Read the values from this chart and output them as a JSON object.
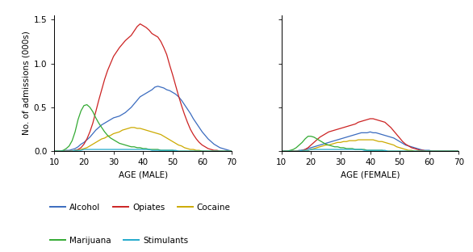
{
  "ylabel": "No. of admissions (000s)",
  "xlabel_male": "AGE (MALE)",
  "xlabel_female": "AGE (FEMALE)",
  "xlim": [
    10,
    70
  ],
  "ylim": [
    0,
    1.55
  ],
  "yticks": [
    0.0,
    0.5,
    1.0,
    1.5
  ],
  "xticks": [
    10,
    20,
    30,
    40,
    50,
    60,
    70
  ],
  "colors": {
    "alcohol": "#3a6bbf",
    "opiates": "#cc2222",
    "cocaine": "#ccaa00",
    "marijuana": "#33aa33",
    "stimulants": "#22aacc"
  },
  "male": {
    "ages": [
      10,
      11,
      12,
      13,
      14,
      15,
      16,
      17,
      18,
      19,
      20,
      21,
      22,
      23,
      24,
      25,
      26,
      27,
      28,
      29,
      30,
      31,
      32,
      33,
      34,
      35,
      36,
      37,
      38,
      39,
      40,
      41,
      42,
      43,
      44,
      45,
      46,
      47,
      48,
      49,
      50,
      51,
      52,
      53,
      54,
      55,
      56,
      57,
      58,
      59,
      60,
      61,
      62,
      63,
      64,
      65,
      66,
      67,
      68,
      69,
      70
    ],
    "alcohol": [
      0.0,
      0.0,
      0.0,
      0.0,
      0.01,
      0.01,
      0.02,
      0.03,
      0.05,
      0.08,
      0.1,
      0.13,
      0.16,
      0.2,
      0.24,
      0.27,
      0.3,
      0.32,
      0.34,
      0.36,
      0.38,
      0.39,
      0.4,
      0.42,
      0.44,
      0.47,
      0.5,
      0.54,
      0.58,
      0.62,
      0.64,
      0.66,
      0.68,
      0.7,
      0.73,
      0.74,
      0.73,
      0.72,
      0.7,
      0.69,
      0.67,
      0.65,
      0.62,
      0.58,
      0.53,
      0.48,
      0.43,
      0.37,
      0.32,
      0.27,
      0.22,
      0.18,
      0.14,
      0.11,
      0.08,
      0.06,
      0.04,
      0.03,
      0.02,
      0.01,
      0.0
    ],
    "opiates": [
      0.0,
      0.0,
      0.0,
      0.0,
      0.0,
      0.0,
      0.0,
      0.01,
      0.02,
      0.04,
      0.08,
      0.14,
      0.22,
      0.32,
      0.45,
      0.58,
      0.7,
      0.82,
      0.92,
      1.0,
      1.08,
      1.13,
      1.18,
      1.22,
      1.26,
      1.29,
      1.32,
      1.37,
      1.42,
      1.45,
      1.43,
      1.41,
      1.38,
      1.34,
      1.32,
      1.3,
      1.25,
      1.18,
      1.1,
      0.98,
      0.87,
      0.75,
      0.63,
      0.52,
      0.42,
      0.33,
      0.25,
      0.19,
      0.14,
      0.1,
      0.07,
      0.05,
      0.03,
      0.02,
      0.01,
      0.01,
      0.0,
      0.0,
      0.0,
      0.0,
      0.0
    ],
    "cocaine": [
      0.0,
      0.0,
      0.0,
      0.0,
      0.0,
      0.0,
      0.0,
      0.01,
      0.01,
      0.02,
      0.03,
      0.04,
      0.06,
      0.08,
      0.1,
      0.12,
      0.14,
      0.15,
      0.17,
      0.18,
      0.2,
      0.21,
      0.22,
      0.24,
      0.25,
      0.26,
      0.27,
      0.27,
      0.26,
      0.26,
      0.25,
      0.24,
      0.23,
      0.22,
      0.21,
      0.2,
      0.19,
      0.17,
      0.15,
      0.13,
      0.11,
      0.09,
      0.07,
      0.06,
      0.04,
      0.03,
      0.02,
      0.02,
      0.01,
      0.01,
      0.0,
      0.0,
      0.0,
      0.0,
      0.0,
      0.0,
      0.0,
      0.0,
      0.0,
      0.0,
      0.0
    ],
    "marijuana": [
      0.0,
      0.0,
      0.0,
      0.01,
      0.03,
      0.06,
      0.12,
      0.22,
      0.36,
      0.46,
      0.52,
      0.53,
      0.5,
      0.45,
      0.38,
      0.32,
      0.27,
      0.22,
      0.18,
      0.15,
      0.13,
      0.11,
      0.09,
      0.08,
      0.07,
      0.06,
      0.05,
      0.05,
      0.04,
      0.04,
      0.03,
      0.03,
      0.02,
      0.02,
      0.02,
      0.02,
      0.01,
      0.01,
      0.01,
      0.01,
      0.01,
      0.0,
      0.0,
      0.0,
      0.0,
      0.0,
      0.0,
      0.0,
      0.0,
      0.0,
      0.0,
      0.0,
      0.0,
      0.0,
      0.0,
      0.0,
      0.0,
      0.0,
      0.0,
      0.0,
      0.0
    ],
    "stimulants": [
      0.0,
      0.0,
      0.0,
      0.0,
      0.0,
      0.0,
      0.0,
      0.01,
      0.01,
      0.01,
      0.02,
      0.02,
      0.02,
      0.02,
      0.02,
      0.02,
      0.02,
      0.02,
      0.02,
      0.02,
      0.02,
      0.02,
      0.02,
      0.02,
      0.02,
      0.02,
      0.02,
      0.02,
      0.02,
      0.02,
      0.02,
      0.02,
      0.02,
      0.01,
      0.01,
      0.01,
      0.01,
      0.01,
      0.01,
      0.01,
      0.01,
      0.01,
      0.0,
      0.0,
      0.0,
      0.0,
      0.0,
      0.0,
      0.0,
      0.0,
      0.0,
      0.0,
      0.0,
      0.0,
      0.0,
      0.0,
      0.0,
      0.0,
      0.0,
      0.0,
      0.0
    ]
  },
  "female": {
    "ages": [
      10,
      11,
      12,
      13,
      14,
      15,
      16,
      17,
      18,
      19,
      20,
      21,
      22,
      23,
      24,
      25,
      26,
      27,
      28,
      29,
      30,
      31,
      32,
      33,
      34,
      35,
      36,
      37,
      38,
      39,
      40,
      41,
      42,
      43,
      44,
      45,
      46,
      47,
      48,
      49,
      50,
      51,
      52,
      53,
      54,
      55,
      56,
      57,
      58,
      59,
      60,
      61,
      62,
      63,
      64,
      65,
      66,
      67,
      68,
      69,
      70
    ],
    "alcohol": [
      0.0,
      0.0,
      0.0,
      0.0,
      0.0,
      0.0,
      0.01,
      0.01,
      0.02,
      0.03,
      0.04,
      0.05,
      0.06,
      0.07,
      0.08,
      0.09,
      0.1,
      0.11,
      0.12,
      0.13,
      0.14,
      0.15,
      0.16,
      0.17,
      0.18,
      0.19,
      0.2,
      0.21,
      0.21,
      0.21,
      0.22,
      0.21,
      0.21,
      0.2,
      0.19,
      0.18,
      0.17,
      0.16,
      0.15,
      0.13,
      0.11,
      0.09,
      0.07,
      0.06,
      0.05,
      0.04,
      0.03,
      0.02,
      0.01,
      0.01,
      0.01,
      0.0,
      0.0,
      0.0,
      0.0,
      0.0,
      0.0,
      0.0,
      0.0,
      0.0,
      0.0
    ],
    "opiates": [
      0.0,
      0.0,
      0.0,
      0.0,
      0.0,
      0.0,
      0.0,
      0.01,
      0.02,
      0.04,
      0.07,
      0.1,
      0.13,
      0.16,
      0.18,
      0.2,
      0.22,
      0.23,
      0.24,
      0.25,
      0.26,
      0.27,
      0.28,
      0.29,
      0.3,
      0.31,
      0.33,
      0.34,
      0.35,
      0.36,
      0.37,
      0.37,
      0.36,
      0.35,
      0.34,
      0.33,
      0.3,
      0.27,
      0.23,
      0.19,
      0.15,
      0.11,
      0.08,
      0.06,
      0.04,
      0.03,
      0.02,
      0.01,
      0.01,
      0.0,
      0.0,
      0.0,
      0.0,
      0.0,
      0.0,
      0.0,
      0.0,
      0.0,
      0.0,
      0.0,
      0.0
    ],
    "cocaine": [
      0.0,
      0.0,
      0.0,
      0.0,
      0.0,
      0.0,
      0.0,
      0.0,
      0.01,
      0.01,
      0.02,
      0.03,
      0.04,
      0.05,
      0.06,
      0.07,
      0.07,
      0.08,
      0.09,
      0.1,
      0.1,
      0.11,
      0.11,
      0.12,
      0.12,
      0.12,
      0.13,
      0.13,
      0.13,
      0.13,
      0.13,
      0.13,
      0.12,
      0.11,
      0.11,
      0.1,
      0.09,
      0.08,
      0.07,
      0.05,
      0.04,
      0.03,
      0.02,
      0.01,
      0.01,
      0.0,
      0.0,
      0.0,
      0.0,
      0.0,
      0.0,
      0.0,
      0.0,
      0.0,
      0.0,
      0.0,
      0.0,
      0.0,
      0.0,
      0.0,
      0.0
    ],
    "marijuana": [
      0.0,
      0.0,
      0.0,
      0.01,
      0.02,
      0.04,
      0.07,
      0.1,
      0.14,
      0.17,
      0.17,
      0.16,
      0.14,
      0.12,
      0.1,
      0.08,
      0.07,
      0.06,
      0.05,
      0.05,
      0.04,
      0.04,
      0.03,
      0.03,
      0.03,
      0.02,
      0.02,
      0.02,
      0.02,
      0.01,
      0.01,
      0.01,
      0.01,
      0.01,
      0.01,
      0.0,
      0.0,
      0.0,
      0.0,
      0.0,
      0.0,
      0.0,
      0.0,
      0.0,
      0.0,
      0.0,
      0.0,
      0.0,
      0.0,
      0.0,
      0.0,
      0.0,
      0.0,
      0.0,
      0.0,
      0.0,
      0.0,
      0.0,
      0.0,
      0.0,
      0.0
    ],
    "stimulants": [
      0.0,
      0.0,
      0.0,
      0.0,
      0.0,
      0.0,
      0.0,
      0.01,
      0.01,
      0.01,
      0.02,
      0.02,
      0.02,
      0.02,
      0.02,
      0.02,
      0.02,
      0.02,
      0.02,
      0.02,
      0.02,
      0.02,
      0.02,
      0.02,
      0.02,
      0.02,
      0.02,
      0.02,
      0.01,
      0.01,
      0.01,
      0.01,
      0.01,
      0.01,
      0.01,
      0.01,
      0.0,
      0.0,
      0.0,
      0.0,
      0.0,
      0.0,
      0.0,
      0.0,
      0.0,
      0.0,
      0.0,
      0.0,
      0.0,
      0.0,
      0.0,
      0.0,
      0.0,
      0.0,
      0.0,
      0.0,
      0.0,
      0.0,
      0.0,
      0.0,
      0.0
    ]
  },
  "legend_row1": [
    "Alcohol",
    "Opiates",
    "Cocaine"
  ],
  "legend_row2": [
    "Marijuana",
    "Stimulants"
  ],
  "lw": 0.9,
  "fontsize": 7.5,
  "tick_fontsize": 7.5
}
